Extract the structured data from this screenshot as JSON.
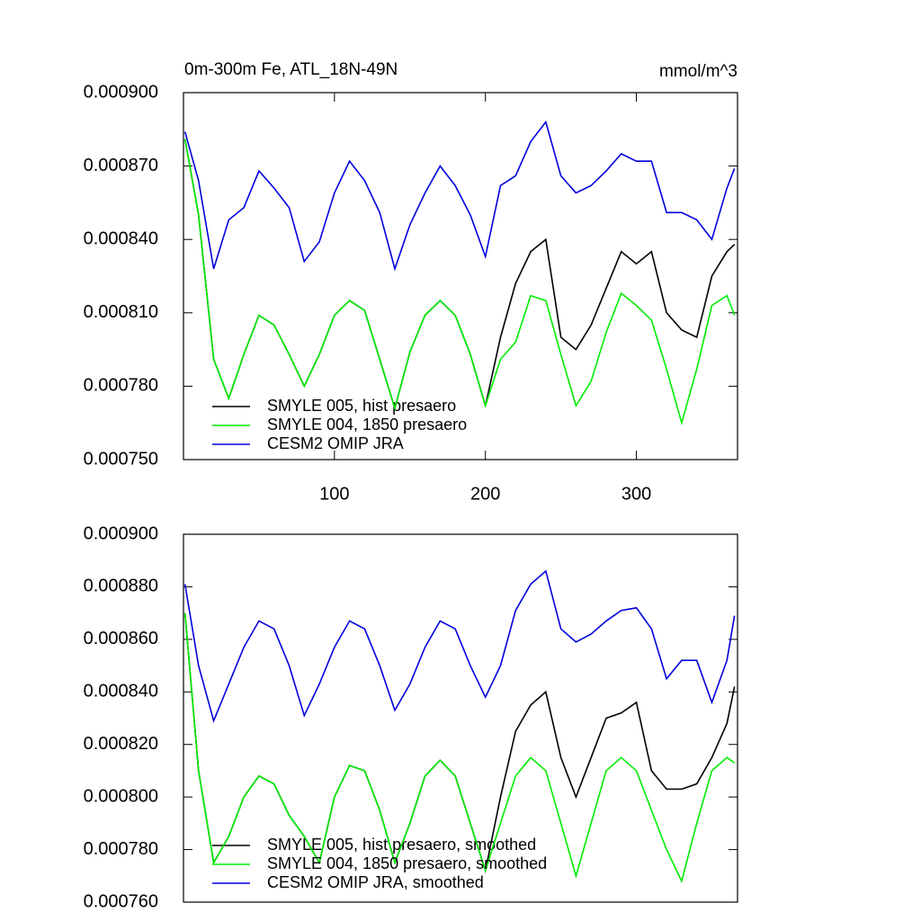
{
  "chart_data": [
    {
      "type": "line",
      "title": "0m-300m Fe, ATL_18N-49N",
      "unit_label": "mmol/m^3",
      "x": [
        1,
        10,
        20,
        30,
        40,
        50,
        60,
        70,
        80,
        90,
        100,
        110,
        120,
        130,
        140,
        150,
        160,
        170,
        180,
        190,
        200,
        210,
        220,
        230,
        240,
        250,
        260,
        270,
        280,
        290,
        300,
        310,
        320,
        330,
        340,
        350,
        360,
        365
      ],
      "xlim": [
        0,
        367
      ],
      "xticks": [
        100,
        200,
        300
      ],
      "ylim": [
        0.00075,
        0.0009
      ],
      "yticks": [
        {
          "value": 0.00075,
          "label": "0.000750"
        },
        {
          "value": 0.00078,
          "label": "0.000780"
        },
        {
          "value": 0.00081,
          "label": "0.000810"
        },
        {
          "value": 0.00084,
          "label": "0.000840"
        },
        {
          "value": 0.00087,
          "label": "0.000870"
        },
        {
          "value": 0.0009,
          "label": "0.000900"
        }
      ],
      "series": [
        {
          "name": "SMYLE 005, hist presaero",
          "color": "#000000",
          "values": [
            0.000881,
            0.00085,
            0.000791,
            0.000775,
            0.000793,
            0.000809,
            0.000805,
            0.000793,
            0.00078,
            0.000793,
            0.000809,
            0.000815,
            0.000811,
            0.000791,
            0.000771,
            0.000794,
            0.000809,
            0.000815,
            0.000809,
            0.000793,
            0.000772,
            0.0008,
            0.000822,
            0.000835,
            0.00084,
            0.0008,
            0.000795,
            0.000805,
            0.00082,
            0.000835,
            0.00083,
            0.000835,
            0.00081,
            0.000803,
            0.0008,
            0.000825,
            0.000835,
            0.000838
          ]
        },
        {
          "name": "SMYLE 004, 1850 presaero",
          "color": "#00ee00",
          "values": [
            0.000881,
            0.00085,
            0.000791,
            0.000775,
            0.000793,
            0.000809,
            0.000805,
            0.000793,
            0.00078,
            0.000793,
            0.000809,
            0.000815,
            0.000811,
            0.000791,
            0.000771,
            0.000794,
            0.000809,
            0.000815,
            0.000809,
            0.000793,
            0.000772,
            0.000791,
            0.000798,
            0.000817,
            0.000815,
            0.000793,
            0.000772,
            0.000782,
            0.000802,
            0.000818,
            0.000813,
            0.000807,
            0.000787,
            0.000765,
            0.000787,
            0.000813,
            0.000817,
            0.000809
          ]
        },
        {
          "name": "CESM2 OMIP JRA",
          "color": "#0000dd",
          "values": [
            0.000884,
            0.000864,
            0.000828,
            0.000848,
            0.000853,
            0.000868,
            0.000861,
            0.000853,
            0.000831,
            0.000839,
            0.000859,
            0.000872,
            0.000864,
            0.000851,
            0.000828,
            0.000846,
            0.000859,
            0.00087,
            0.000862,
            0.00085,
            0.000833,
            0.000862,
            0.000866,
            0.00088,
            0.000888,
            0.000866,
            0.000859,
            0.000862,
            0.000868,
            0.000875,
            0.000872,
            0.000872,
            0.000851,
            0.000851,
            0.000848,
            0.00084,
            0.000861,
            0.000869
          ]
        }
      ]
    },
    {
      "type": "line",
      "x": [
        1,
        10,
        20,
        30,
        40,
        50,
        60,
        70,
        80,
        90,
        100,
        110,
        120,
        130,
        140,
        150,
        160,
        170,
        180,
        190,
        200,
        210,
        220,
        230,
        240,
        250,
        260,
        270,
        280,
        290,
        300,
        310,
        320,
        330,
        340,
        350,
        360,
        365
      ],
      "xlim": [
        0,
        367
      ],
      "ylim": [
        0.00076,
        0.0009
      ],
      "yticks": [
        {
          "value": 0.00076,
          "label": "0.000760"
        },
        {
          "value": 0.00078,
          "label": "0.000780"
        },
        {
          "value": 0.0008,
          "label": "0.000800"
        },
        {
          "value": 0.00082,
          "label": "0.000820"
        },
        {
          "value": 0.00084,
          "label": "0.000840"
        },
        {
          "value": 0.00086,
          "label": "0.000860"
        },
        {
          "value": 0.00088,
          "label": "0.000880"
        },
        {
          "value": 0.0009,
          "label": "0.000900"
        }
      ],
      "series": [
        {
          "name": "SMYLE 005, hist presaero, smoothed",
          "color": "#000000",
          "values": [
            0.00087,
            0.00081,
            0.000775,
            0.000785,
            0.0008,
            0.000808,
            0.000805,
            0.000793,
            0.000785,
            0.000775,
            0.0008,
            0.000812,
            0.00081,
            0.000795,
            0.000775,
            0.00079,
            0.000808,
            0.000814,
            0.000808,
            0.00079,
            0.000772,
            0.0008,
            0.000825,
            0.000835,
            0.00084,
            0.000815,
            0.0008,
            0.000815,
            0.00083,
            0.000832,
            0.000836,
            0.00081,
            0.000803,
            0.000803,
            0.000805,
            0.000815,
            0.000828,
            0.000842
          ]
        },
        {
          "name": "SMYLE 004, 1850 presaero, smoothed",
          "color": "#00ee00",
          "values": [
            0.00087,
            0.00081,
            0.000775,
            0.000785,
            0.0008,
            0.000808,
            0.000805,
            0.000793,
            0.000785,
            0.000775,
            0.0008,
            0.000812,
            0.00081,
            0.000795,
            0.000775,
            0.00079,
            0.000808,
            0.000814,
            0.000808,
            0.00079,
            0.000772,
            0.00079,
            0.000808,
            0.000815,
            0.00081,
            0.00079,
            0.00077,
            0.00079,
            0.00081,
            0.000815,
            0.00081,
            0.000795,
            0.00078,
            0.000768,
            0.00079,
            0.00081,
            0.000815,
            0.000813
          ]
        },
        {
          "name": "CESM2 OMIP JRA, smoothed",
          "color": "#0000dd",
          "values": [
            0.000881,
            0.00085,
            0.000829,
            0.000843,
            0.000857,
            0.000867,
            0.000864,
            0.00085,
            0.000831,
            0.000843,
            0.000857,
            0.000867,
            0.000864,
            0.00085,
            0.000833,
            0.000843,
            0.000857,
            0.000867,
            0.000864,
            0.00085,
            0.000838,
            0.00085,
            0.000871,
            0.000881,
            0.000886,
            0.000864,
            0.000859,
            0.000862,
            0.000867,
            0.000871,
            0.000872,
            0.000864,
            0.000845,
            0.000852,
            0.000852,
            0.000836,
            0.000852,
            0.000869
          ]
        }
      ]
    }
  ]
}
